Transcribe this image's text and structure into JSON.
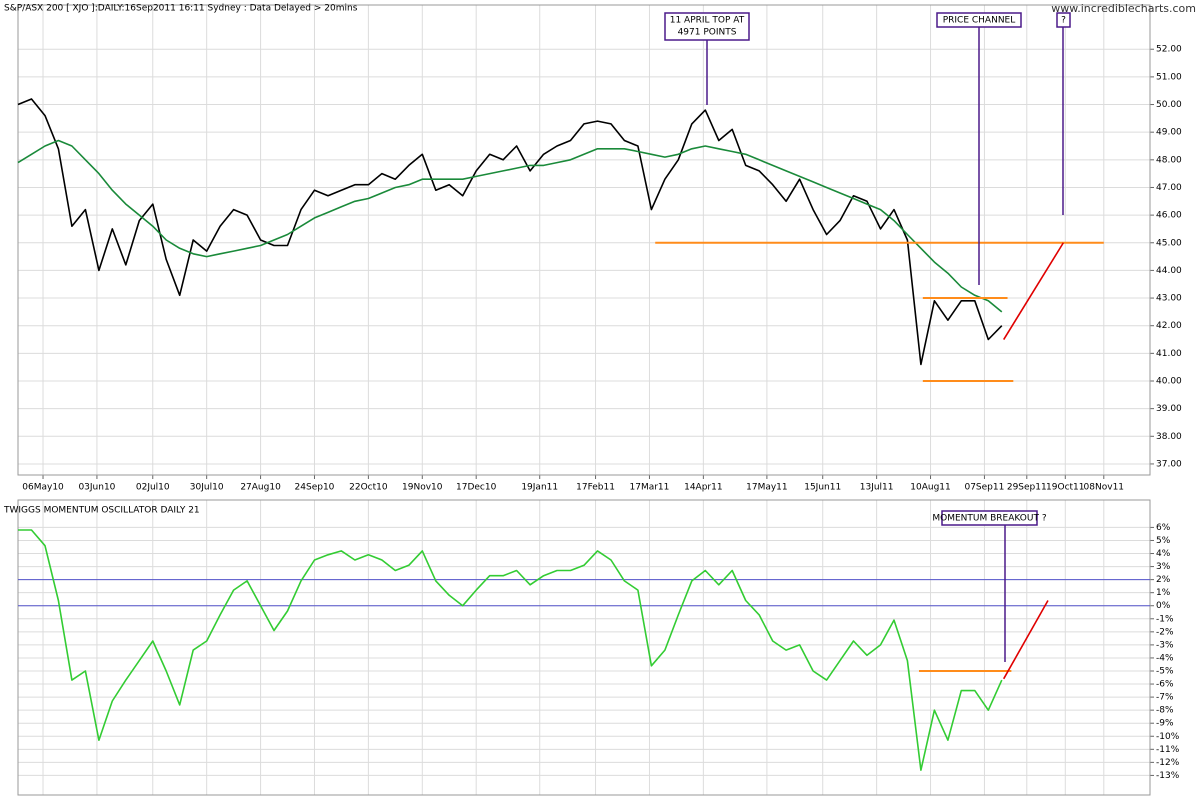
{
  "chart_data": [
    {
      "type": "line",
      "title": "S&P/ASX 200 [ XJO ]:DAILY:16Sep2011 16:11 Sydney : Data Delayed > 20mins",
      "watermark": "www.incrediblecharts.com",
      "x": [
        "2010-04-23",
        "2010-04-30",
        "2010-05-07",
        "2010-05-14",
        "2010-05-21",
        "2010-05-28",
        "2010-06-04",
        "2010-06-11",
        "2010-06-18",
        "2010-06-25",
        "2010-07-02",
        "2010-07-09",
        "2010-07-16",
        "2010-07-23",
        "2010-07-30",
        "2010-08-06",
        "2010-08-13",
        "2010-08-20",
        "2010-08-27",
        "2010-09-03",
        "2010-09-10",
        "2010-09-17",
        "2010-09-24",
        "2010-10-01",
        "2010-10-08",
        "2010-10-15",
        "2010-10-22",
        "2010-10-29",
        "2010-11-05",
        "2010-11-12",
        "2010-11-19",
        "2010-11-26",
        "2010-12-03",
        "2010-12-10",
        "2010-12-17",
        "2010-12-24",
        "2010-12-31",
        "2011-01-07",
        "2011-01-14",
        "2011-01-21",
        "2011-01-28",
        "2011-02-04",
        "2011-02-11",
        "2011-02-18",
        "2011-02-25",
        "2011-03-04",
        "2011-03-11",
        "2011-03-18",
        "2011-03-25",
        "2011-04-01",
        "2011-04-08",
        "2011-04-15",
        "2011-04-22",
        "2011-04-29",
        "2011-05-06",
        "2011-05-13",
        "2011-05-20",
        "2011-05-27",
        "2011-06-03",
        "2011-06-10",
        "2011-06-17",
        "2011-06-24",
        "2011-07-01",
        "2011-07-08",
        "2011-07-15",
        "2011-07-22",
        "2011-07-29",
        "2011-08-05",
        "2011-08-12",
        "2011-08-19",
        "2011-08-26",
        "2011-09-02",
        "2011-09-09",
        "2011-09-16"
      ],
      "series": [
        {
          "color": "#000000",
          "values": [
            50.0,
            50.2,
            49.6,
            48.4,
            45.6,
            46.2,
            44.0,
            45.5,
            44.2,
            45.8,
            46.4,
            44.4,
            43.1,
            45.1,
            44.7,
            45.6,
            46.2,
            46.0,
            45.1,
            44.9,
            44.9,
            46.2,
            46.9,
            46.7,
            46.9,
            47.1,
            47.1,
            47.5,
            47.3,
            47.8,
            48.2,
            46.9,
            47.1,
            46.7,
            47.6,
            48.2,
            48.0,
            48.5,
            47.6,
            48.2,
            48.5,
            48.7,
            49.3,
            49.4,
            49.3,
            48.7,
            48.5,
            46.2,
            47.3,
            48.0,
            49.3,
            49.8,
            48.7,
            49.1,
            47.8,
            47.6,
            47.1,
            46.5,
            47.3,
            46.2,
            45.3,
            45.8,
            46.7,
            46.5,
            45.5,
            46.2,
            45.1,
            40.6,
            42.9,
            42.2,
            42.9,
            42.9,
            41.5,
            42.0
          ]
        },
        {
          "color": "#1a8a3a",
          "values": [
            47.9,
            48.2,
            48.5,
            48.7,
            48.5,
            48.0,
            47.5,
            46.9,
            46.4,
            46.0,
            45.6,
            45.1,
            44.8,
            44.6,
            44.5,
            44.6,
            44.7,
            44.8,
            44.9,
            45.1,
            45.3,
            45.6,
            45.9,
            46.1,
            46.3,
            46.5,
            46.6,
            46.8,
            47.0,
            47.1,
            47.3,
            47.3,
            47.3,
            47.3,
            47.4,
            47.5,
            47.6,
            47.7,
            47.8,
            47.8,
            47.9,
            48.0,
            48.2,
            48.4,
            48.4,
            48.4,
            48.3,
            48.2,
            48.1,
            48.2,
            48.4,
            48.5,
            48.4,
            48.3,
            48.2,
            48.0,
            47.8,
            47.6,
            47.4,
            47.2,
            47.0,
            46.8,
            46.6,
            46.4,
            46.2,
            45.8,
            45.3,
            44.8,
            44.3,
            43.9,
            43.4,
            43.1,
            42.9,
            42.5
          ]
        }
      ],
      "levels": [
        {
          "value": 45,
          "x": [
            "2011-03-20",
            "2011-11-08"
          ],
          "color": "#ff8c1a"
        },
        {
          "value": 43,
          "x": [
            "2011-08-06",
            "2011-09-19"
          ],
          "color": "#ff8c1a"
        },
        {
          "value": 40,
          "x": [
            "2011-08-06",
            "2011-09-22"
          ],
          "color": "#ff8c1a"
        }
      ],
      "trend_lines": [
        {
          "x": [
            "2011-09-17",
            "2011-10-18"
          ],
          "values": [
            41.5,
            45
          ],
          "color": "#e00000"
        }
      ],
      "annotations": [
        {
          "lines": [
            "11 APRIL TOP AT",
            "4971 POINTS"
          ]
        },
        {
          "lines": [
            "PRICE CHANNEL"
          ]
        },
        {
          "lines": [
            "?"
          ]
        }
      ],
      "xlim": [
        "2010-04-23",
        "2011-12-02"
      ],
      "xticks": [
        {
          "value": "2010-05-06",
          "label": "06May10"
        },
        {
          "value": "2010-06-03",
          "label": "03Jun10"
        },
        {
          "value": "2010-07-02",
          "label": "02Jul10"
        },
        {
          "value": "2010-07-30",
          "label": "30Jul10"
        },
        {
          "value": "2010-08-27",
          "label": "27Aug10"
        },
        {
          "value": "2010-09-24",
          "label": "24Sep10"
        },
        {
          "value": "2010-10-22",
          "label": "22Oct10"
        },
        {
          "value": "2010-11-19",
          "label": "19Nov10"
        },
        {
          "value": "2010-12-17",
          "label": "17Dec10"
        },
        {
          "value": "2011-01-19",
          "label": "19Jan11"
        },
        {
          "value": "2011-02-17",
          "label": "17Feb11"
        },
        {
          "value": "2011-03-17",
          "label": "17Mar11"
        },
        {
          "value": "2011-04-14",
          "label": "14Apr11"
        },
        {
          "value": "2011-05-17",
          "label": "17May11"
        },
        {
          "value": "2011-06-15",
          "label": "15Jun11"
        },
        {
          "value": "2011-07-13",
          "label": "13Jul11"
        },
        {
          "value": "2011-08-10",
          "label": "10Aug11"
        },
        {
          "value": "2011-09-07",
          "label": "07Sep11"
        },
        {
          "value": "2011-09-29",
          "label": "29Sep11"
        },
        {
          "value": "2011-10-19",
          "label": "19Oct11"
        },
        {
          "value": "2011-11-08",
          "label": "08Nov11"
        }
      ],
      "ylim": [
        36.6,
        53.6
      ],
      "yticks": [
        {
          "value": 37,
          "label": "37.00"
        },
        {
          "value": 38,
          "label": "38.00"
        },
        {
          "value": 39,
          "label": "39.00"
        },
        {
          "value": 40,
          "label": "40.00"
        },
        {
          "value": 41,
          "label": "41.00"
        },
        {
          "value": 42,
          "label": "42.00"
        },
        {
          "value": 43,
          "label": "43.00"
        },
        {
          "value": 44,
          "label": "44.00"
        },
        {
          "value": 45,
          "label": "45.00"
        },
        {
          "value": 46,
          "label": "46.00"
        },
        {
          "value": 47,
          "label": "47.00"
        },
        {
          "value": 48,
          "label": "48.00"
        },
        {
          "value": 49,
          "label": "49.00"
        },
        {
          "value": 50,
          "label": "50.00"
        },
        {
          "value": 51,
          "label": "51.00"
        },
        {
          "value": 52,
          "label": "52.00"
        }
      ],
      "grid": true
    },
    {
      "type": "line",
      "title": "TWIGGS MOMENTUM OSCILLATOR DAILY 21",
      "x": [
        "2010-04-23",
        "2010-04-30",
        "2010-05-07",
        "2010-05-14",
        "2010-05-21",
        "2010-05-28",
        "2010-06-04",
        "2010-06-11",
        "2010-06-18",
        "2010-06-25",
        "2010-07-02",
        "2010-07-09",
        "2010-07-16",
        "2010-07-23",
        "2010-07-30",
        "2010-08-06",
        "2010-08-13",
        "2010-08-20",
        "2010-08-27",
        "2010-09-03",
        "2010-09-10",
        "2010-09-17",
        "2010-09-24",
        "2010-10-01",
        "2010-10-08",
        "2010-10-15",
        "2010-10-22",
        "2010-10-29",
        "2010-11-05",
        "2010-11-12",
        "2010-11-19",
        "2010-11-26",
        "2010-12-03",
        "2010-12-10",
        "2010-12-17",
        "2010-12-24",
        "2010-12-31",
        "2011-01-07",
        "2011-01-14",
        "2011-01-21",
        "2011-01-28",
        "2011-02-04",
        "2011-02-11",
        "2011-02-18",
        "2011-02-25",
        "2011-03-04",
        "2011-03-11",
        "2011-03-18",
        "2011-03-25",
        "2011-04-01",
        "2011-04-08",
        "2011-04-15",
        "2011-04-22",
        "2011-04-29",
        "2011-05-06",
        "2011-05-13",
        "2011-05-20",
        "2011-05-27",
        "2011-06-03",
        "2011-06-10",
        "2011-06-17",
        "2011-06-24",
        "2011-07-01",
        "2011-07-08",
        "2011-07-15",
        "2011-07-22",
        "2011-07-29",
        "2011-08-05",
        "2011-08-12",
        "2011-08-19",
        "2011-08-26",
        "2011-09-02",
        "2011-09-09",
        "2011-09-16"
      ],
      "series": [
        {
          "color": "#33cc33",
          "values": [
            5.8,
            5.8,
            4.6,
            0.4,
            -5.7,
            -5.0,
            -10.3,
            -7.3,
            -5.7,
            -4.2,
            -2.7,
            -5.0,
            -7.6,
            -3.4,
            -2.7,
            -0.7,
            1.2,
            1.9,
            0.0,
            -1.9,
            -0.4,
            1.9,
            3.5,
            3.9,
            4.2,
            3.5,
            3.9,
            3.5,
            2.7,
            3.1,
            4.2,
            1.9,
            0.8,
            0.0,
            1.2,
            2.3,
            2.3,
            2.7,
            1.6,
            2.3,
            2.7,
            2.7,
            3.1,
            4.2,
            3.5,
            1.9,
            1.2,
            -4.6,
            -3.4,
            -0.7,
            1.9,
            2.7,
            1.6,
            2.7,
            0.4,
            -0.7,
            -2.7,
            -3.4,
            -3.0,
            -5.0,
            -5.7,
            -4.2,
            -2.7,
            -3.8,
            -3.0,
            -1.1,
            -4.2,
            -12.6,
            -8.0,
            -10.3,
            -6.5,
            -6.5,
            -8.0,
            -5.7
          ]
        }
      ],
      "reference_lines": [
        {
          "value": 2,
          "color": "#5555cc"
        },
        {
          "value": 0,
          "color": "#5555cc"
        }
      ],
      "levels": [
        {
          "value": -5,
          "x": [
            "2011-08-04",
            "2011-09-21"
          ],
          "color": "#ff8c1a"
        }
      ],
      "trend_lines": [
        {
          "x": [
            "2011-09-17",
            "2011-10-10"
          ],
          "values": [
            -5.6,
            0.4
          ],
          "color": "#e00000"
        }
      ],
      "annotations": [
        {
          "lines": [
            "MOMENTUM BREAKOUT ?"
          ]
        }
      ],
      "xlim": [
        "2010-04-23",
        "2011-12-02"
      ],
      "ylim": [
        -14.5,
        8.1
      ],
      "yticks": [
        {
          "value": -13,
          "label": "-13%"
        },
        {
          "value": -12,
          "label": "-12%"
        },
        {
          "value": -11,
          "label": "-11%"
        },
        {
          "value": -10,
          "label": "-10%"
        },
        {
          "value": -9,
          "label": "-9%"
        },
        {
          "value": -8,
          "label": "-8%"
        },
        {
          "value": -7,
          "label": "-7%"
        },
        {
          "value": -6,
          "label": "-6%"
        },
        {
          "value": -5,
          "label": "-5%"
        },
        {
          "value": -4,
          "label": "-4%"
        },
        {
          "value": -3,
          "label": "-3%"
        },
        {
          "value": -2,
          "label": "-2%"
        },
        {
          "value": -1,
          "label": "-1%"
        },
        {
          "value": 0,
          "label": "0%"
        },
        {
          "value": 1,
          "label": "1%"
        },
        {
          "value": 2,
          "label": "2%"
        },
        {
          "value": 3,
          "label": "3%"
        },
        {
          "value": 4,
          "label": "4%"
        },
        {
          "value": 5,
          "label": "5%"
        },
        {
          "value": 6,
          "label": "6%"
        }
      ],
      "grid": true
    }
  ]
}
